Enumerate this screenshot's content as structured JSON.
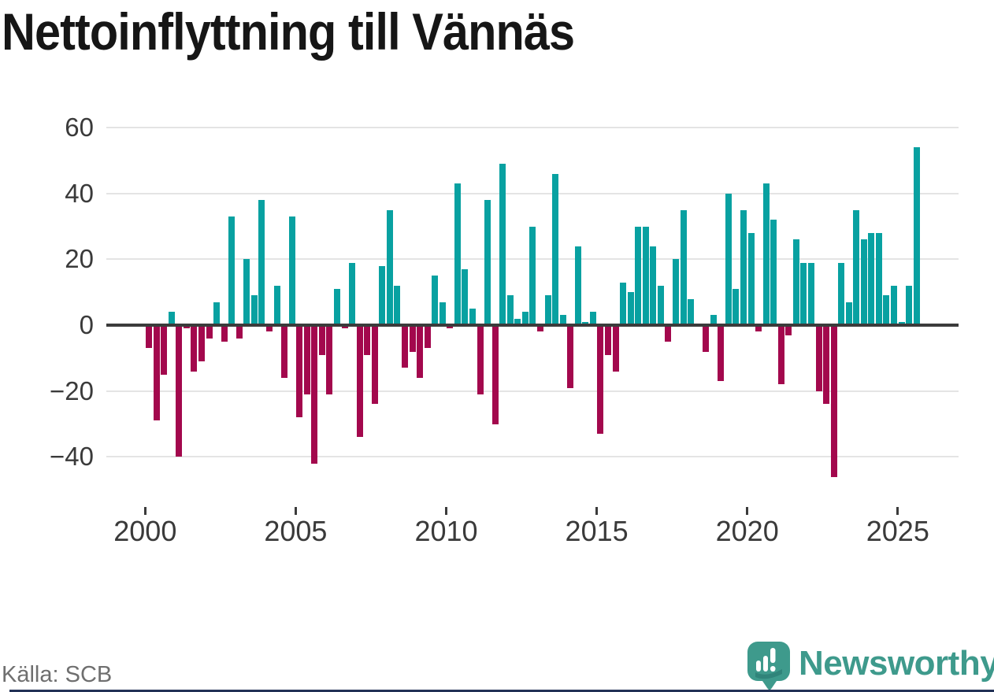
{
  "title": "Nettoinflyttning till Vännäs",
  "source": "Källa: SCB",
  "brand": {
    "name": "Newsworthy",
    "color": "#3e9a8c",
    "icon": "speech-bubble-bar-chart-icon"
  },
  "chart_data": {
    "type": "bar",
    "title": "Nettoinflyttning till Vännäs",
    "frequency": "quarterly",
    "start": "2000Q1",
    "end": "2025Q3",
    "ylim": [
      -50,
      65
    ],
    "grid": true,
    "y_ticks": [
      60,
      40,
      20,
      0,
      -20,
      -40
    ],
    "x_ticks": [
      2000,
      2005,
      2010,
      2015,
      2020,
      2025
    ],
    "positive_color": "#08a1a1",
    "negative_color": "#a3084d",
    "axis_color": "#3b3b3b",
    "grid_color": "#e4e4e4",
    "values_by_year": {
      "2000": [
        -7,
        -29,
        -15,
        4
      ],
      "2001": [
        -40,
        -1,
        -14,
        -11
      ],
      "2002": [
        -4,
        7,
        -5,
        33
      ],
      "2003": [
        -4,
        20,
        9,
        38
      ],
      "2004": [
        -2,
        12,
        -16,
        33
      ],
      "2005": [
        -28,
        -21,
        -42,
        -9
      ],
      "2006": [
        -21,
        11,
        -1,
        19
      ],
      "2007": [
        -34,
        -9,
        -24,
        18
      ],
      "2008": [
        35,
        12,
        -13,
        -8
      ],
      "2009": [
        -16,
        -7,
        15,
        7
      ],
      "2010": [
        -1,
        43,
        17,
        5
      ],
      "2011": [
        -21,
        38,
        -30,
        49
      ],
      "2012": [
        9,
        2,
        4,
        30
      ],
      "2013": [
        -2,
        9,
        46,
        3
      ],
      "2014": [
        -19,
        24,
        1,
        4
      ],
      "2015": [
        -33,
        -9,
        -14,
        13
      ],
      "2016": [
        10,
        30,
        30,
        24
      ],
      "2017": [
        12,
        -5,
        20,
        35
      ],
      "2018": [
        8,
        0,
        -8,
        3
      ],
      "2019": [
        -17,
        40,
        11,
        35
      ],
      "2020": [
        28,
        -2,
        43,
        32
      ],
      "2021": [
        -18,
        -3,
        26,
        19
      ],
      "2022": [
        19,
        -20,
        -24,
        -46
      ],
      "2023": [
        19,
        7,
        35,
        26
      ],
      "2024": [
        28,
        28,
        9,
        12
      ],
      "2025": [
        1,
        12,
        54
      ]
    }
  }
}
